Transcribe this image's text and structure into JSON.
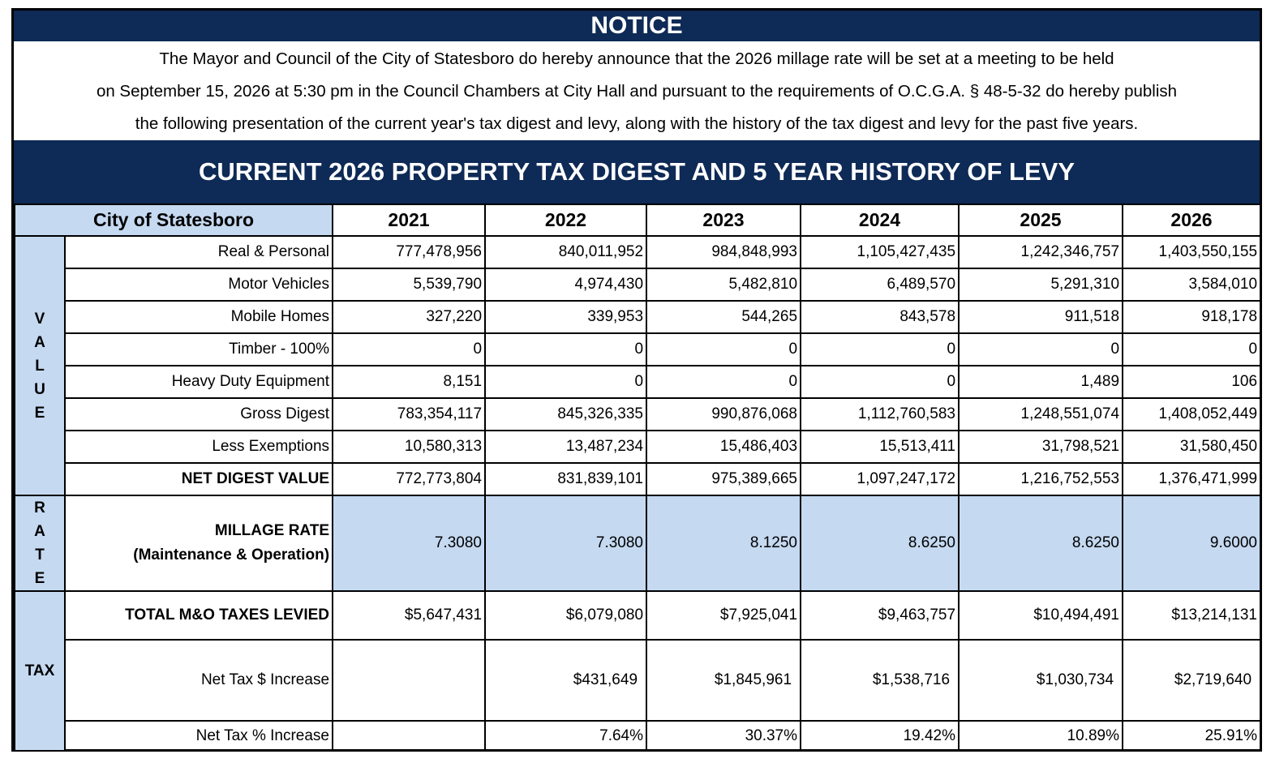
{
  "notice": {
    "title": "NOTICE",
    "lines": [
      "The Mayor and Council of the City of Statesboro do hereby announce that the 2026 millage rate will be set at a meeting to be held",
      "on September 15, 2026 at 5:30 pm in the Council Chambers at City Hall and pursuant to the requirements of O.C.G.A. § 48-5-32 do hereby publish",
      "the following presentation of the current year's tax digest and levy, along with the history of the tax digest and levy for the past five years."
    ]
  },
  "table": {
    "title": "CURRENT 2026 PROPERTY TAX DIGEST AND 5 YEAR HISTORY OF LEVY",
    "corner_label": "City of Statesboro",
    "years": [
      "2021",
      "2022",
      "2023",
      "2024",
      "2025",
      "2026"
    ],
    "sections": {
      "value": "V\nA\nL\nU\nE",
      "rate": "R\nA\nT\nE",
      "tax": "TAX"
    },
    "rows": [
      {
        "label": "Real & Personal",
        "values": [
          "777,478,956",
          "840,011,952",
          "984,848,993",
          "1,105,427,435",
          "1,242,346,757",
          "1,403,550,155"
        ]
      },
      {
        "label": "Motor Vehicles",
        "values": [
          "5,539,790",
          "4,974,430",
          "5,482,810",
          "6,489,570",
          "5,291,310",
          "3,584,010"
        ]
      },
      {
        "label": "Mobile Homes",
        "values": [
          "327,220",
          "339,953",
          "544,265",
          "843,578",
          "911,518",
          "918,178"
        ]
      },
      {
        "label": "Timber - 100%",
        "values": [
          "0",
          "0",
          "0",
          "0",
          "0",
          "0"
        ]
      },
      {
        "label": "Heavy Duty Equipment",
        "values": [
          "8,151",
          "0",
          "0",
          "0",
          "1,489",
          "106"
        ]
      },
      {
        "label": "Gross Digest",
        "values": [
          "783,354,117",
          "845,326,335",
          "990,876,068",
          "1,112,760,583",
          "1,248,551,074",
          "1,408,052,449"
        ]
      },
      {
        "label": "Less Exemptions",
        "values": [
          "10,580,313",
          "13,487,234",
          "15,486,403",
          "15,513,411",
          "31,798,521",
          "31,580,450"
        ]
      },
      {
        "label": "NET DIGEST VALUE",
        "values": [
          "772,773,804",
          "831,839,101",
          "975,389,665",
          "1,097,247,172",
          "1,216,752,553",
          "1,376,471,999"
        ]
      },
      {
        "label": "MILLAGE RATE",
        "label2": "(Maintenance & Operation)",
        "values": [
          "7.3080",
          "7.3080",
          "8.1250",
          "8.6250",
          "8.6250",
          "9.6000"
        ]
      },
      {
        "label": "TOTAL M&O TAXES LEVIED",
        "values": [
          "$5,647,431",
          "$6,079,080",
          "$7,925,041",
          "$9,463,757",
          "$10,494,491",
          "$13,214,131"
        ]
      },
      {
        "label": "Net Tax $ Increase",
        "values": [
          "",
          "$431,649",
          "$1,845,961",
          "$1,538,716",
          "$1,030,734",
          "$2,719,640"
        ]
      },
      {
        "label": "Net Tax % Increase",
        "values": [
          "",
          "7.64%",
          "30.37%",
          "19.42%",
          "10.89%",
          "25.91%"
        ]
      }
    ]
  }
}
